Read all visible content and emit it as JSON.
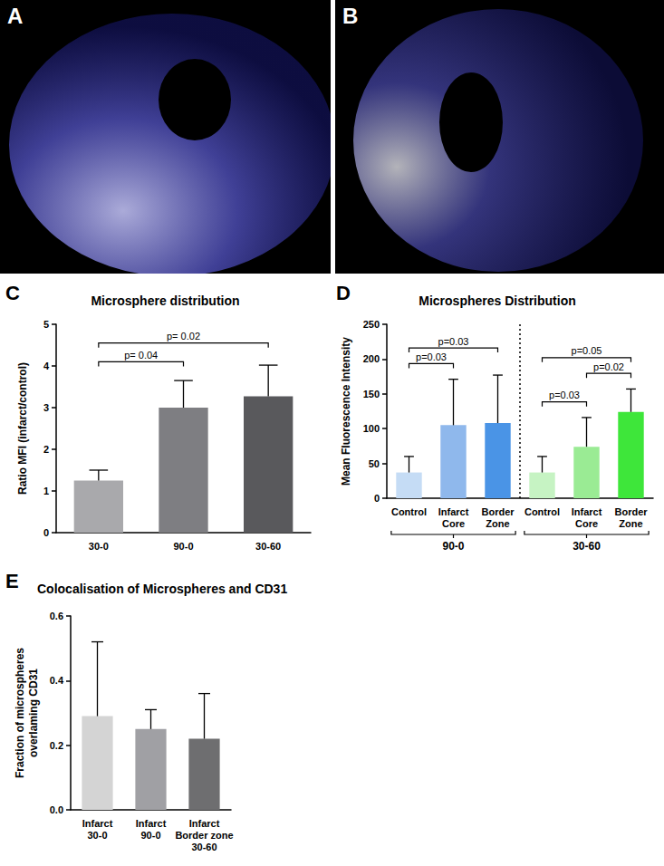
{
  "panels": [
    {
      "label": "A"
    },
    {
      "label": "B"
    }
  ],
  "chart_data": [
    {
      "type": "bar",
      "panel_label": "C",
      "title": "Microsphere distribution",
      "y_label": "Ratio MFI (infarct/control)",
      "categories": [
        "30-0",
        "90-0",
        "30-60"
      ],
      "values": [
        1.25,
        3.0,
        3.27
      ],
      "errors": [
        0.25,
        0.65,
        0.75
      ],
      "colors": [
        "#a9a9ac",
        "#7e7e82",
        "#59595c"
      ],
      "ylim": [
        0,
        5
      ],
      "yticks": [
        0,
        1,
        2,
        3,
        4,
        5
      ],
      "grid": false,
      "annotations": [
        {
          "between": [
            0,
            1
          ],
          "text": "p= 0.04"
        },
        {
          "between": [
            0,
            2
          ],
          "text": "p= 0.02"
        }
      ]
    },
    {
      "type": "bar",
      "panel_label": "D",
      "title": "Microspheres Distribution",
      "y_label": "Mean Fluorescence Intensity",
      "categories": [
        "Control",
        "Infarct\nCore",
        "Border\nZone",
        "Control",
        "Infarct\nCore",
        "Border\nZone"
      ],
      "groups": [
        "90-0",
        "90-0",
        "90-0",
        "30-60",
        "30-60",
        "30-60"
      ],
      "values": [
        37,
        105,
        108,
        37,
        74,
        124
      ],
      "errors": [
        23,
        66,
        69,
        23,
        42,
        33
      ],
      "colors": [
        "#c5dcf5",
        "#8fb8ec",
        "#4a94e6",
        "#c6f3c3",
        "#9aeb94",
        "#3ee63a"
      ],
      "ylim": [
        0,
        250
      ],
      "yticks": [
        0,
        50,
        100,
        150,
        200,
        250
      ],
      "grid": false,
      "annotations": [
        {
          "between": [
            0,
            1
          ],
          "text": "p=0.03"
        },
        {
          "between": [
            0,
            2
          ],
          "text": "p=0.03"
        },
        {
          "between": [
            3,
            4
          ],
          "text": "p=0.03"
        },
        {
          "between": [
            4,
            5
          ],
          "text": "p=0.02"
        },
        {
          "between": [
            3,
            5
          ],
          "text": "p=0.05"
        }
      ]
    },
    {
      "type": "bar",
      "panel_label": "E",
      "title": "Colocalisation of Microspheres and CD31",
      "y_label": "Fraction of microspheres\noverlaming CD31",
      "categories": [
        "Infarct\n30-0",
        "Infarct\n90-0",
        "Infarct\nBorder zone\n30-60"
      ],
      "values": [
        0.29,
        0.25,
        0.22
      ],
      "errors": [
        0.23,
        0.06,
        0.14
      ],
      "colors": [
        "#d4d4d4",
        "#a0a0a4",
        "#6e6e70"
      ],
      "ylim": [
        0,
        0.6
      ],
      "yticks": [
        {
          "value": 0,
          "label": "0.0"
        },
        0.2,
        0.4,
        0.6
      ],
      "grid": false,
      "annotations": []
    }
  ]
}
